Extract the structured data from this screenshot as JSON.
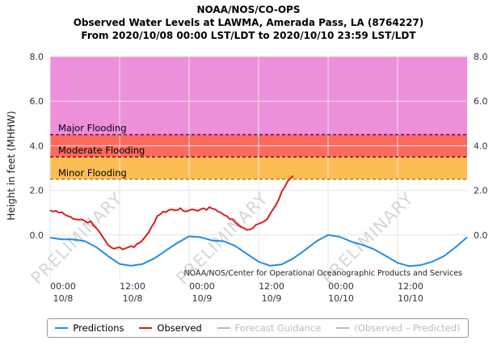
{
  "header": {
    "line1": "NOAA/NOS/CO-OPS",
    "line2": "Observed Water Levels at LAWMA, Amerada Pass, LA (8764227)",
    "line3": "From 2020/10/08 00:00 LST/LDT to 2020/10/10 23:59 LST/LDT"
  },
  "watermark_text": "PRELIMINARY",
  "credit_text": "NOAA/NOS/Center for Operational Oceanographic Products and Services",
  "colors": {
    "major": "#ee8fdc",
    "moderate": "#fa6b5e",
    "minor": "#fdbd55",
    "predictions": "#1f8ee6",
    "observed": "#d71f1f",
    "threshold_major": "#6a0d6a",
    "threshold_moderate": "#a00000",
    "threshold_minor": "#c07a00",
    "legend_inactive": "#bbbbbb"
  },
  "chart_data": {
    "type": "line",
    "ylabel": "Height in feet (MHHW)",
    "ylim": [
      -2.0,
      8.0
    ],
    "xlim_hours": [
      0,
      72
    ],
    "yticks": [
      "8.0",
      "6.0",
      "4.0",
      "2.0",
      "0.0"
    ],
    "ytick_values": [
      8,
      6,
      4,
      2,
      0
    ],
    "xticks": [
      {
        "hour": 0,
        "time": "00:00",
        "date": "10/8"
      },
      {
        "hour": 12,
        "time": "12:00",
        "date": "10/8"
      },
      {
        "hour": 24,
        "time": "00:00",
        "date": "10/9"
      },
      {
        "hour": 36,
        "time": "12:00",
        "date": "10/9"
      },
      {
        "hour": 48,
        "time": "00:00",
        "date": "10/10"
      },
      {
        "hour": 60,
        "time": "12:00",
        "date": "10/10"
      }
    ],
    "grid": true,
    "legend_position": "bottom",
    "flood_zones": [
      {
        "name": "Major Flooding",
        "from": 4.5,
        "to": 8.0,
        "color": "#ee8fdc"
      },
      {
        "name": "Moderate Flooding",
        "from": 3.5,
        "to": 4.5,
        "color": "#fa6b5e"
      },
      {
        "name": "Minor Flooding",
        "from": 2.5,
        "to": 3.5,
        "color": "#fdbd55"
      }
    ],
    "series": [
      {
        "name": "Predictions",
        "color": "#1f8ee6",
        "x": [
          0,
          2,
          4,
          6,
          8,
          10,
          12,
          14,
          16,
          18,
          20,
          22,
          24,
          26,
          28,
          30,
          32,
          34,
          36,
          38,
          40,
          42,
          44,
          46,
          48,
          50,
          52,
          54,
          56,
          58,
          60,
          62,
          64,
          66,
          68,
          70,
          72
        ],
        "values": [
          -0.12,
          -0.2,
          -0.2,
          -0.28,
          -0.55,
          -0.95,
          -1.3,
          -1.38,
          -1.3,
          -1.05,
          -0.7,
          -0.35,
          -0.06,
          -0.1,
          -0.25,
          -0.28,
          -0.5,
          -0.85,
          -1.2,
          -1.38,
          -1.32,
          -1.05,
          -0.68,
          -0.28,
          0.0,
          -0.08,
          -0.3,
          -0.45,
          -0.65,
          -0.95,
          -1.25,
          -1.4,
          -1.35,
          -1.2,
          -0.95,
          -0.55,
          -0.1
        ]
      },
      {
        "name": "Observed",
        "color": "#d71f1f",
        "x": [
          0,
          0.5,
          1,
          1.5,
          2,
          2.5,
          3,
          3.5,
          4,
          4.5,
          5,
          5.5,
          6,
          6.5,
          7,
          7.5,
          8,
          8.5,
          9,
          9.5,
          10,
          10.5,
          11,
          11.5,
          12,
          12.5,
          13,
          13.5,
          14,
          14.5,
          15,
          15.5,
          16,
          16.5,
          17,
          17.5,
          18,
          18.5,
          19,
          19.5,
          20,
          20.5,
          21,
          21.5,
          22,
          22.5,
          23,
          23.5,
          24,
          24.5,
          25,
          25.5,
          26,
          26.5,
          27,
          27.5,
          28,
          28.5,
          29,
          29.5,
          30,
          30.5,
          31,
          31.5,
          32,
          32.5,
          33,
          33.5,
          34,
          34.5,
          35,
          35.5,
          36,
          36.5,
          37,
          37.5,
          38,
          38.5,
          39,
          39.5,
          40,
          40.5,
          41,
          41.5,
          42
        ],
        "values": [
          1.1,
          1.05,
          1.08,
          1.0,
          1.02,
          0.92,
          0.85,
          0.82,
          0.72,
          0.7,
          0.68,
          0.7,
          0.62,
          0.55,
          0.62,
          0.42,
          0.3,
          0.15,
          -0.05,
          -0.25,
          -0.45,
          -0.55,
          -0.62,
          -0.58,
          -0.55,
          -0.65,
          -0.6,
          -0.55,
          -0.5,
          -0.55,
          -0.4,
          -0.35,
          -0.22,
          -0.05,
          0.1,
          0.35,
          0.55,
          0.85,
          0.92,
          1.05,
          1.02,
          1.12,
          1.15,
          1.1,
          1.12,
          1.2,
          1.08,
          1.05,
          1.1,
          1.15,
          1.12,
          1.08,
          1.15,
          1.2,
          1.12,
          1.25,
          1.18,
          1.15,
          1.05,
          1.0,
          0.9,
          0.85,
          0.72,
          0.7,
          0.55,
          0.45,
          0.35,
          0.3,
          0.22,
          0.25,
          0.3,
          0.45,
          0.5,
          0.55,
          0.62,
          0.72,
          0.95,
          1.15,
          1.35,
          1.6,
          1.95,
          2.15,
          2.4,
          2.55,
          2.65
        ]
      },
      {
        "name": "Forecast Guidance",
        "color": "#bbbbbb",
        "values": []
      },
      {
        "name": "(Observed – Predicted)",
        "color": "#bbbbbb",
        "values": []
      }
    ]
  },
  "legend": {
    "predictions_label": "Predictions",
    "observed_label": "Observed",
    "forecast_label": "Forecast Guidance",
    "difference_label": "(Observed – Predicted)"
  }
}
